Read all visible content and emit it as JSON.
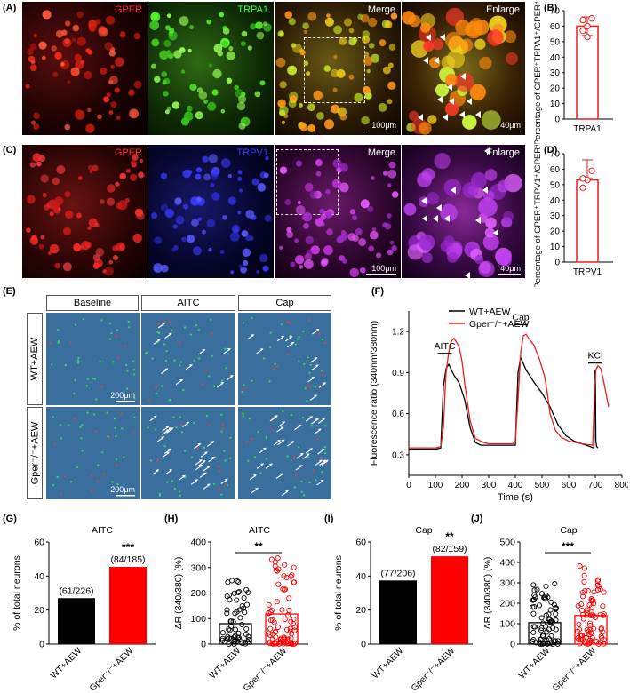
{
  "panel_labels": {
    "A": "(A)",
    "B": "(B)",
    "C": "(C)",
    "D": "(D)",
    "E": "(E)",
    "F": "(F)",
    "G": "(G)",
    "H": "(H)",
    "I": "(I)",
    "J": "(J)"
  },
  "row_A": {
    "labels": [
      "GPER",
      "TRPA1",
      "Merge",
      "Enlarge"
    ],
    "label_colors": [
      "#ff3030",
      "#40ff40",
      "#ffffff",
      "#ffffff"
    ],
    "scale_merge": "100μm",
    "scale_enlarge": "40μm"
  },
  "row_C": {
    "labels": [
      "GPER",
      "TRPV1",
      "Merge",
      "Enlarge"
    ],
    "label_colors": [
      "#ff3030",
      "#3a3aff",
      "#ffffff",
      "#ffffff"
    ],
    "scale_merge": "100μm",
    "scale_enlarge": "40μm"
  },
  "panel_E": {
    "columns": [
      "Baseline",
      "AITC",
      "Cap"
    ],
    "rows": [
      "WT+AEW",
      "Gper⁻/⁻+AEW"
    ],
    "scale": "200μm"
  },
  "chart_data": [
    {
      "id": "B",
      "type": "bar",
      "ylabel": "Percentage of GPER⁺TRPA1⁺/GPER⁺ (%)",
      "categories": [
        "TRPA1"
      ],
      "values": [
        60
      ],
      "points": [
        57,
        53,
        65,
        64,
        60
      ],
      "ylim": [
        0,
        70
      ],
      "yticks": [
        0,
        10,
        20,
        30,
        40,
        50,
        60,
        70
      ],
      "color": "#e8211c"
    },
    {
      "id": "D",
      "type": "bar",
      "ylabel": "Percentage of GPER⁺TRPV1⁺/GPER⁺ (%)",
      "categories": [
        "TRPV1"
      ],
      "values": [
        53
      ],
      "points": [
        48,
        53,
        59,
        54
      ],
      "ylim": [
        0,
        70
      ],
      "yticks": [
        0,
        10,
        20,
        30,
        40,
        50,
        60,
        70
      ],
      "color": "#e8211c"
    },
    {
      "id": "F",
      "type": "line",
      "xlabel": "Time (s)",
      "ylabel": "Fluorescence ratio (340nm/380nm)",
      "xlim": [
        0,
        800
      ],
      "ylim": [
        0.15,
        1.35
      ],
      "xticks": [
        0,
        100,
        200,
        300,
        400,
        500,
        600,
        700,
        800
      ],
      "yticks": [
        0.3,
        0.6,
        0.9,
        1.2
      ],
      "annotations": [
        {
          "text": "AITC",
          "x": 135,
          "y": 1.04
        },
        {
          "text": "Cap",
          "x": 420,
          "y": 1.25
        },
        {
          "text": "KCl",
          "x": 700,
          "y": 0.97
        }
      ],
      "series": [
        {
          "name": "WT+AEW",
          "color": "#000000",
          "x": [
            0,
            100,
            120,
            130,
            140,
            150,
            170,
            190,
            210,
            230,
            250,
            270,
            300,
            350,
            390,
            400,
            410,
            420,
            440,
            470,
            500,
            530,
            560,
            590,
            620,
            650,
            680,
            695,
            698,
            700,
            702,
            705,
            710
          ],
          "y": [
            0.34,
            0.34,
            0.35,
            0.8,
            0.93,
            0.96,
            0.88,
            0.82,
            0.7,
            0.5,
            0.39,
            0.37,
            0.37,
            0.37,
            0.37,
            0.37,
            0.9,
            1.01,
            0.92,
            0.83,
            0.75,
            0.65,
            0.52,
            0.44,
            0.4,
            0.38,
            0.36,
            0.35,
            0.9,
            0.92,
            0.4,
            0.36,
            0.35
          ]
        },
        {
          "name": "Gper⁻/⁻+AEW",
          "color": "#e8211c",
          "x": [
            0,
            100,
            120,
            130,
            140,
            150,
            160,
            170,
            180,
            190,
            200,
            210,
            230,
            250,
            280,
            300,
            350,
            390,
            400,
            410,
            420,
            430,
            440,
            450,
            470,
            490,
            510,
            520,
            530,
            550,
            570,
            600,
            650,
            690,
            698,
            702,
            710,
            720,
            730,
            740,
            750
          ],
          "y": [
            0.35,
            0.35,
            0.36,
            0.5,
            0.9,
            1.05,
            1.13,
            1.15,
            1.12,
            1.08,
            0.98,
            0.82,
            0.55,
            0.42,
            0.39,
            0.38,
            0.38,
            0.38,
            0.4,
            0.7,
            1.05,
            1.17,
            1.18,
            1.15,
            1.1,
            1.0,
            0.87,
            0.75,
            0.6,
            0.48,
            0.43,
            0.4,
            0.38,
            0.37,
            0.8,
            0.92,
            0.95,
            0.93,
            0.85,
            0.75,
            0.65
          ]
        }
      ]
    },
    {
      "id": "G",
      "type": "bar",
      "title": "AITC",
      "ylabel": "% of total neurons",
      "categories": [
        "WT+AEW",
        "Gper⁻/⁻+AEW"
      ],
      "values": [
        27,
        45.4
      ],
      "bar_labels": [
        "(61/226)",
        "(84/185)"
      ],
      "colors": [
        "#000000",
        "#ff0000"
      ],
      "ylim": [
        0,
        60
      ],
      "yticks": [
        0,
        20,
        40,
        60
      ],
      "significance": "***"
    },
    {
      "id": "H",
      "type": "scatter",
      "title": "AITC",
      "ylabel": "ΔR (340/380) (%)",
      "categories": [
        "WT+AEW",
        "Gper⁻/⁻+AEW"
      ],
      "values": [
        80,
        118
      ],
      "colors": [
        "#000000",
        "#ff0000"
      ],
      "ylim": [
        0,
        400
      ],
      "yticks": [
        0,
        100,
        200,
        300,
        400
      ],
      "spread": [
        [
          0,
          250
        ],
        [
          0,
          380
        ]
      ],
      "counts": [
        60,
        80
      ],
      "significance": "**"
    },
    {
      "id": "I",
      "type": "bar",
      "title": "Cap",
      "ylabel": "% of total neurons",
      "categories": [
        "WT+AEW",
        "Gper⁻/⁻+AEW"
      ],
      "values": [
        37.4,
        51.6
      ],
      "bar_labels": [
        "(77/206)",
        "(82/159)"
      ],
      "colors": [
        "#000000",
        "#ff0000"
      ],
      "ylim": [
        0,
        60
      ],
      "yticks": [
        0,
        20,
        40,
        60
      ],
      "significance": "**"
    },
    {
      "id": "J",
      "type": "scatter",
      "title": "Cap",
      "ylabel": "ΔR (340/380) (%)",
      "categories": [
        "WT+AEW",
        "Gper⁻/⁻+AEW"
      ],
      "values": [
        105,
        140
      ],
      "colors": [
        "#000000",
        "#ff0000"
      ],
      "ylim": [
        0,
        500
      ],
      "yticks": [
        0,
        100,
        200,
        300,
        400,
        500
      ],
      "spread": [
        [
          0,
          300
        ],
        [
          0,
          400
        ]
      ],
      "counts": [
        75,
        80
      ],
      "significance": "***"
    }
  ]
}
